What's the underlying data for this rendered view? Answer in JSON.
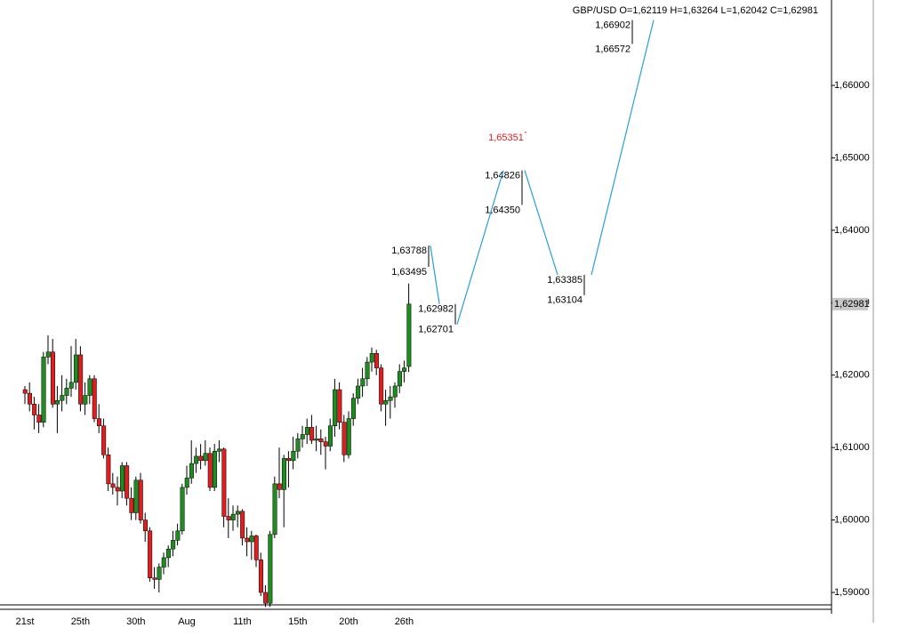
{
  "chart_data": {
    "type": "candlestick",
    "title": "GBP/USD O=1,62119 H=1,63264 L=1,62042 C=1,62981",
    "categories": [
      "21st",
      null,
      null,
      null,
      null,
      null,
      null,
      null,
      null,
      null,
      null,
      null,
      "25th",
      null,
      null,
      null,
      null,
      null,
      null,
      null,
      null,
      null,
      null,
      null,
      "30th",
      null,
      null,
      null,
      null,
      null,
      null,
      null,
      null,
      null,
      null,
      "Aug",
      null,
      null,
      null,
      null,
      null,
      null,
      null,
      null,
      null,
      null,
      null,
      "11th",
      null,
      null,
      null,
      null,
      null,
      null,
      null,
      null,
      null,
      null,
      null,
      "15th",
      null,
      null,
      null,
      null,
      null,
      null,
      null,
      null,
      null,
      null,
      "20th",
      null,
      null,
      null,
      null,
      null,
      null,
      null,
      null,
      null,
      null,
      null,
      "26th",
      null
    ],
    "open": [
      1.618,
      1.6175,
      1.616,
      1.6145,
      1.6135,
      1.6225,
      1.6232,
      1.616,
      1.6165,
      1.6172,
      1.6182,
      1.619,
      1.6228,
      1.616,
      1.6172,
      1.6195,
      1.614,
      1.613,
      1.609,
      1.605,
      1.6045,
      1.604,
      1.6075,
      1.603,
      1.601,
      1.6055,
      1.6,
      1.5985,
      1.592,
      1.5918,
      1.5935,
      1.5948,
      1.596,
      1.5972,
      1.5985,
      1.6045,
      1.6058,
      1.6078,
      1.6088,
      1.6082,
      1.6092,
      1.6045,
      1.6095,
      1.6098,
      1.6005,
      1.6,
      1.6008,
      1.6012,
      1.5975,
      1.597,
      1.5978,
      1.5945,
      1.59,
      1.5885,
      1.598,
      1.605,
      1.6042,
      1.6085,
      1.6082,
      1.6095,
      1.6112,
      1.6118,
      1.6128,
      1.611,
      1.6112,
      1.6108,
      1.6102,
      1.613,
      1.618,
      1.6135,
      1.609,
      1.614,
      1.6168,
      1.6185,
      1.6195,
      1.6218,
      1.623,
      1.621,
      1.616,
      1.6165,
      1.617,
      1.6185,
      1.6205,
      1.62119
    ],
    "high": [
      1.6185,
      1.619,
      1.617,
      1.616,
      1.6232,
      1.6255,
      1.625,
      1.6185,
      1.62,
      1.6195,
      1.624,
      1.625,
      1.624,
      1.619,
      1.62,
      1.62,
      1.616,
      1.614,
      1.61,
      1.6065,
      1.606,
      1.608,
      1.608,
      1.6045,
      1.606,
      1.6065,
      1.601,
      1.599,
      1.5935,
      1.594,
      1.5955,
      1.5965,
      1.5985,
      1.5995,
      1.605,
      1.6075,
      1.611,
      1.61,
      1.6105,
      1.611,
      1.61,
      1.6105,
      1.611,
      1.61,
      1.603,
      1.602,
      1.602,
      1.6015,
      1.599,
      1.5985,
      1.598,
      1.5955,
      1.591,
      1.5985,
      1.606,
      1.61,
      1.609,
      1.6095,
      1.6115,
      1.612,
      1.613,
      1.614,
      1.6145,
      1.613,
      1.6125,
      1.6115,
      1.614,
      1.6195,
      1.619,
      1.6145,
      1.615,
      1.6175,
      1.6195,
      1.621,
      1.6225,
      1.6238,
      1.6235,
      1.6215,
      1.618,
      1.6185,
      1.619,
      1.6215,
      1.622,
      1.63264
    ],
    "low": [
      1.616,
      1.615,
      1.6125,
      1.612,
      1.6128,
      1.6215,
      1.6155,
      1.612,
      1.615,
      1.616,
      1.617,
      1.618,
      1.615,
      1.6145,
      1.616,
      1.6135,
      1.612,
      1.6085,
      1.604,
      1.6035,
      1.602,
      1.603,
      1.602,
      1.6,
      1.6,
      1.5995,
      1.597,
      1.5915,
      1.5905,
      1.59,
      1.5925,
      1.5935,
      1.595,
      1.5965,
      1.598,
      1.6035,
      1.605,
      1.6065,
      1.607,
      1.6075,
      1.604,
      1.604,
      1.608,
      1.599,
      1.5975,
      1.5985,
      1.599,
      1.5965,
      1.595,
      1.5945,
      1.5935,
      1.5895,
      1.588,
      1.588,
      1.5975,
      1.603,
      1.599,
      1.6045,
      1.607,
      1.6085,
      1.61,
      1.6105,
      1.6105,
      1.6095,
      1.609,
      1.607,
      1.6095,
      1.6115,
      1.6125,
      1.608,
      1.6085,
      1.613,
      1.616,
      1.617,
      1.6185,
      1.6205,
      1.62,
      1.615,
      1.613,
      1.614,
      1.6155,
      1.6175,
      1.619,
      1.62042
    ],
    "close": [
      1.6175,
      1.616,
      1.6145,
      1.6135,
      1.6225,
      1.6232,
      1.616,
      1.6165,
      1.6172,
      1.6182,
      1.619,
      1.6228,
      1.616,
      1.6172,
      1.6195,
      1.614,
      1.613,
      1.609,
      1.605,
      1.6045,
      1.604,
      1.6075,
      1.603,
      1.601,
      1.6055,
      1.6,
      1.5985,
      1.592,
      1.5918,
      1.5935,
      1.5948,
      1.596,
      1.5972,
      1.5985,
      1.6045,
      1.6058,
      1.6078,
      1.6088,
      1.6082,
      1.6092,
      1.6045,
      1.6095,
      1.6098,
      1.6005,
      1.6,
      1.6008,
      1.6012,
      1.5975,
      1.597,
      1.5978,
      1.5945,
      1.59,
      1.5885,
      1.598,
      1.605,
      1.6042,
      1.6085,
      1.6082,
      1.6095,
      1.6112,
      1.6118,
      1.6128,
      1.611,
      1.6112,
      1.6108,
      1.6102,
      1.613,
      1.618,
      1.6135,
      1.609,
      1.614,
      1.6168,
      1.6185,
      1.6195,
      1.6218,
      1.623,
      1.621,
      1.616,
      1.6165,
      1.617,
      1.6185,
      1.6205,
      1.621,
      1.62981
    ],
    "up_color": "#1e8c1e",
    "down_color": "#dd1f1f",
    "ylim": [
      1.58767,
      1.67179
    ],
    "yticks": [
      {
        "value": 1.59,
        "label": "1,59000"
      },
      {
        "value": 1.6,
        "label": "1,60000"
      },
      {
        "value": 1.61,
        "label": "1,61000"
      },
      {
        "value": 1.62,
        "label": "1,62000"
      },
      {
        "value": 1.63,
        "label": "1,63000"
      },
      {
        "value": 1.64,
        "label": "1,64000"
      },
      {
        "value": 1.65,
        "label": "1,65000"
      },
      {
        "value": 1.66,
        "label": "1,66000"
      }
    ],
    "last_price": {
      "value": 1.62981,
      "label": "1,62981"
    },
    "projection_color": "#2a9fd6",
    "projections": [
      {
        "high": {
          "value": 1.63788,
          "label": "1,63788"
        },
        "low": {
          "value": 1.63495,
          "label": "1,63495"
        }
      },
      {
        "high": {
          "value": 1.62982,
          "label": "1,62982"
        },
        "low": {
          "value": 1.62701,
          "label": "1,62701"
        }
      },
      {
        "high": {
          "value": 1.64826,
          "label": "1,64826"
        },
        "low": {
          "value": 1.6435,
          "label": "1,64350"
        }
      },
      {
        "high": {
          "value": 1.63385,
          "label": "1,63385"
        },
        "low": {
          "value": 1.63104,
          "label": "1,63104"
        }
      },
      {
        "high": {
          "value": 1.66902,
          "label": "1,66902"
        },
        "low": {
          "value": 1.66572,
          "label": "1,66572"
        }
      }
    ],
    "target": {
      "value": 1.65351,
      "label": "1,65351"
    },
    "target_color": "#dd1f1f"
  }
}
